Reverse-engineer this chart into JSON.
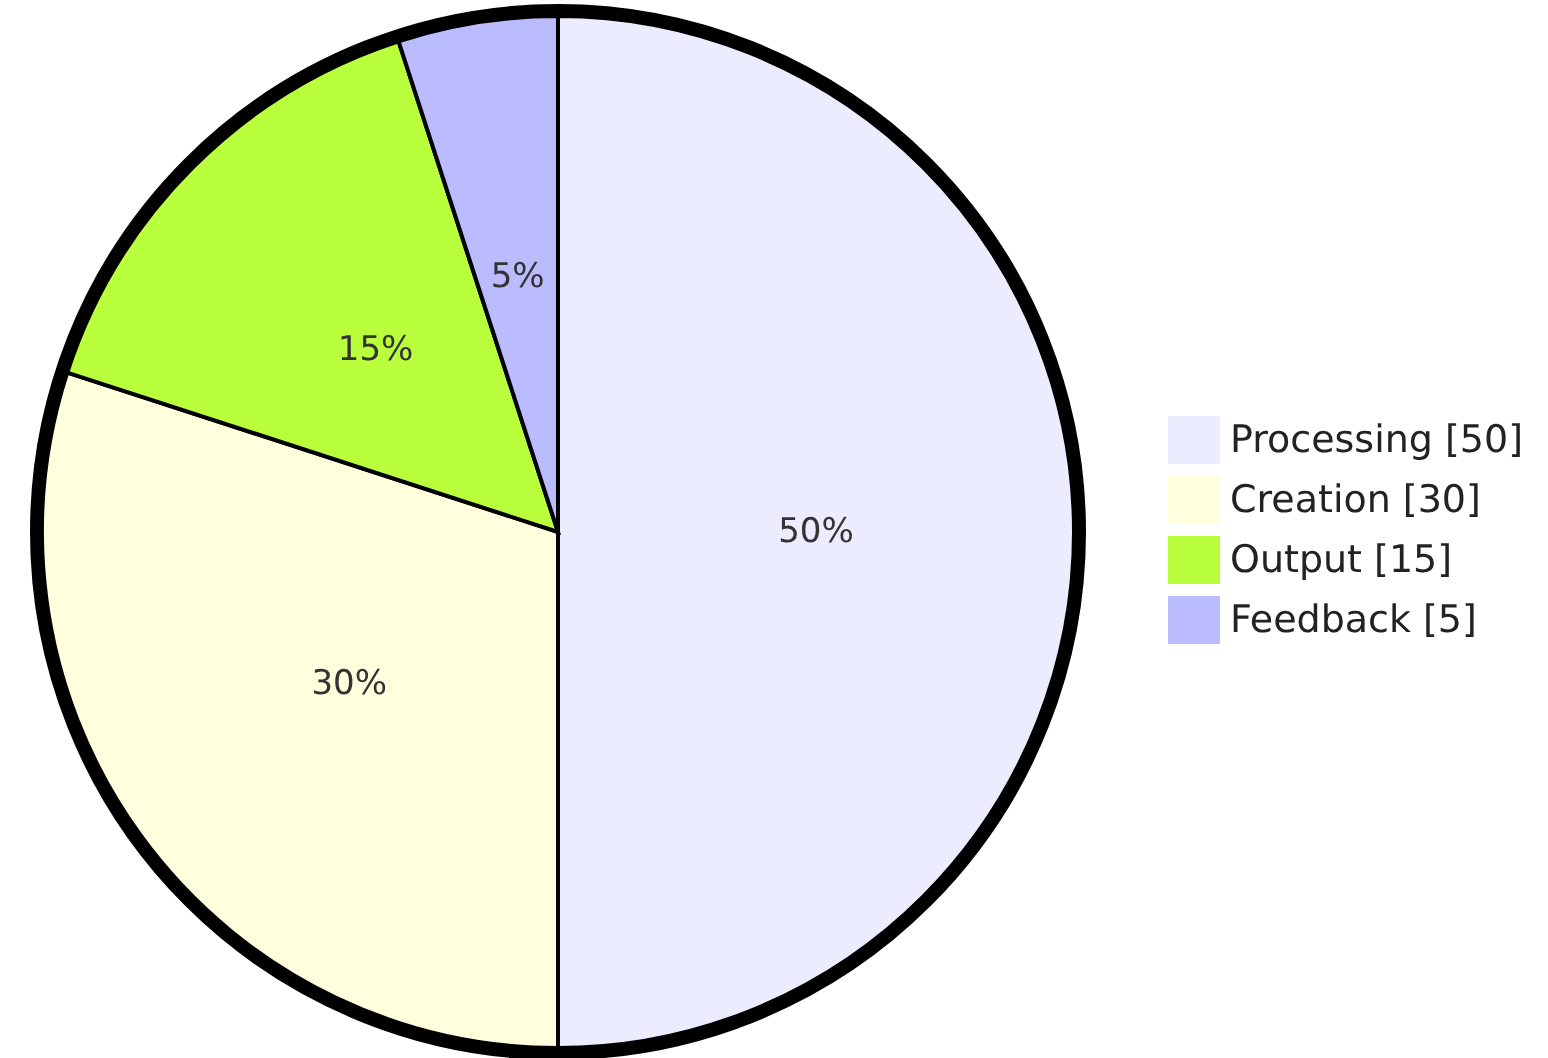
{
  "chart_data": {
    "type": "pie",
    "categories": [
      "Processing [50]",
      "Creation [30]",
      "Output [15]",
      "Feedback [5]"
    ],
    "values": [
      50,
      30,
      15,
      5
    ],
    "value_labels": [
      "50%",
      "30%",
      "15%",
      "5%"
    ],
    "colors": [
      "#ececff",
      "#ffffde",
      "#b9ff3c",
      "#bbbbff"
    ],
    "legend": "right"
  }
}
